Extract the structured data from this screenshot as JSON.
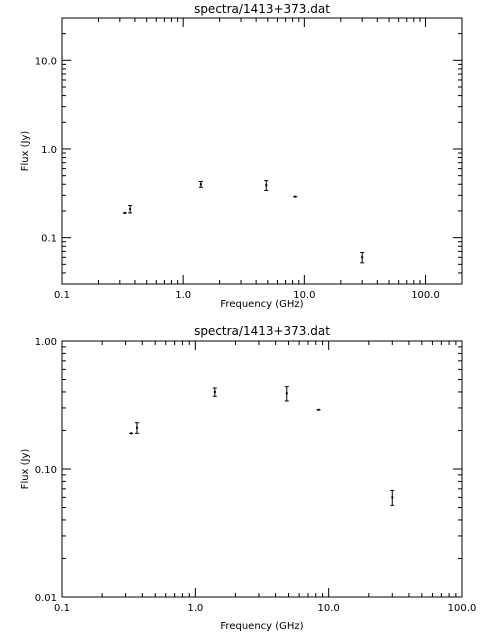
{
  "chart_data": [
    {
      "type": "scatter",
      "title": "spectra/1413+373.dat",
      "xlabel": "Frequency (GHz)",
      "ylabel": "Flux (Jy)",
      "xscale": "log",
      "yscale": "log",
      "xlim": [
        0.1,
        200
      ],
      "ylim": [
        0.03,
        30
      ],
      "xticks": [
        0.1,
        1.0,
        10.0,
        100.0
      ],
      "xticklabels": [
        "0.1",
        "1.0",
        "10.0",
        "100.0"
      ],
      "yticks": [
        0.1,
        1.0,
        10.0
      ],
      "yticklabels": [
        "0.1",
        "1.0",
        "10.0"
      ],
      "grid": false,
      "points": [
        {
          "x": 0.33,
          "y": 0.19,
          "err": 0.0,
          "xerr": 0.003
        },
        {
          "x": 0.365,
          "y": 0.21,
          "err": 0.02,
          "xerr": 0.0
        },
        {
          "x": 1.4,
          "y": 0.4,
          "err": 0.03,
          "xerr": 0.0
        },
        {
          "x": 4.85,
          "y": 0.39,
          "err": 0.05,
          "xerr": 0.0
        },
        {
          "x": 8.4,
          "y": 0.29,
          "err": 0.0,
          "xerr": 0.1
        },
        {
          "x": 30.0,
          "y": 0.06,
          "err": 0.008,
          "xerr": 0.0
        }
      ]
    },
    {
      "type": "scatter",
      "title": "spectra/1413+373.dat",
      "xlabel": "Frequency (GHz)",
      "ylabel": "Flux (Jy)",
      "xscale": "log",
      "yscale": "log",
      "xlim": [
        0.1,
        100
      ],
      "ylim": [
        0.01,
        1.0
      ],
      "xticks": [
        0.1,
        1.0,
        10.0,
        100.0
      ],
      "xticklabels": [
        "0.1",
        "1.0",
        "10.0",
        "100.0"
      ],
      "yticks": [
        0.01,
        0.1,
        1.0
      ],
      "yticklabels": [
        "0.01",
        "0.10",
        "1.00"
      ],
      "grid": false,
      "points": [
        {
          "x": 0.33,
          "y": 0.19,
          "err": 0.0,
          "xerr": 0.003
        },
        {
          "x": 0.365,
          "y": 0.21,
          "err": 0.02,
          "xerr": 0.0
        },
        {
          "x": 1.4,
          "y": 0.4,
          "err": 0.03,
          "xerr": 0.0
        },
        {
          "x": 4.85,
          "y": 0.39,
          "err": 0.05,
          "xerr": 0.0
        },
        {
          "x": 8.4,
          "y": 0.29,
          "err": 0.0,
          "xerr": 0.1
        },
        {
          "x": 30.0,
          "y": 0.06,
          "err": 0.008,
          "xerr": 0.0
        }
      ]
    }
  ]
}
